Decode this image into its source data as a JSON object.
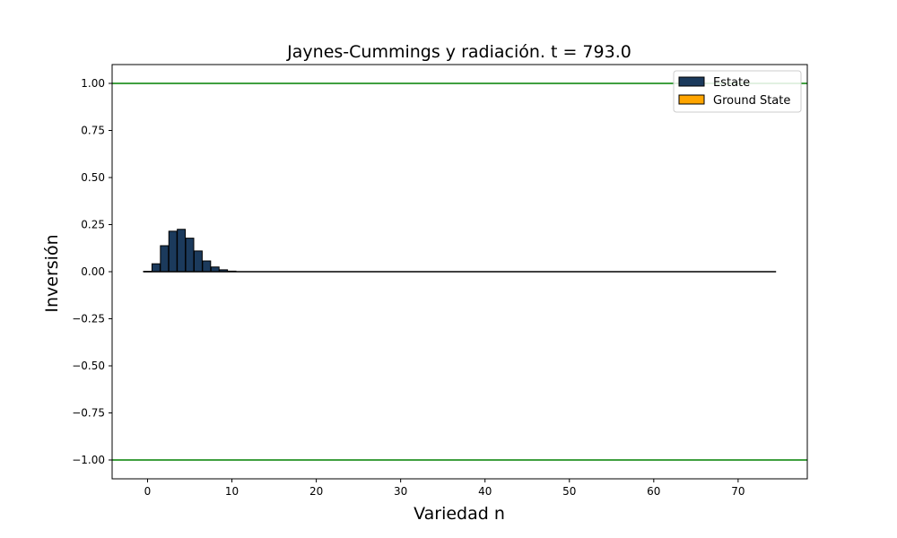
{
  "chart_data": {
    "type": "bar",
    "title": "Jaynes-Cummings y radiación. t = 793.0",
    "xlabel": "Variedad n",
    "ylabel": "Inversión",
    "xlim": [
      -4.2,
      78.2
    ],
    "ylim": [
      -1.1,
      1.1
    ],
    "xticks": [
      0,
      10,
      20,
      30,
      40,
      50,
      60,
      70
    ],
    "xtick_labels": [
      "0",
      "10",
      "20",
      "30",
      "40",
      "50",
      "60",
      "70"
    ],
    "yticks": [
      1.0,
      0.75,
      0.5,
      0.25,
      0.0,
      -0.25,
      -0.5,
      -0.75,
      -1.0
    ],
    "ytick_labels": [
      "1.00",
      "0.75",
      "0.50",
      "0.25",
      "0.00",
      "−0.25",
      "−0.50",
      "−0.75",
      "−1.00"
    ],
    "hlines": [
      {
        "y": 1.0,
        "color": "#008000"
      },
      {
        "y": -1.0,
        "color": "#008000"
      }
    ],
    "baseline": {
      "y": 0.0,
      "x_range": [
        -0.5,
        74.5
      ],
      "color": "#000000"
    },
    "series": [
      {
        "name": "Estate",
        "color": "#1b3a5c",
        "x": [
          0,
          1,
          2,
          3,
          4,
          5,
          6,
          7,
          8,
          9,
          10
        ],
        "values": [
          0.002,
          0.042,
          0.138,
          0.215,
          0.225,
          0.178,
          0.11,
          0.057,
          0.025,
          0.01,
          0.003
        ]
      },
      {
        "name": "Ground State",
        "color": "#ffa500",
        "x": [],
        "values": []
      }
    ],
    "legend": {
      "placement": "top-right",
      "items": [
        {
          "label": "Estate",
          "color": "#1b3a5c"
        },
        {
          "label": "Ground State",
          "color": "#ffa500"
        }
      ]
    },
    "grid": false
  }
}
